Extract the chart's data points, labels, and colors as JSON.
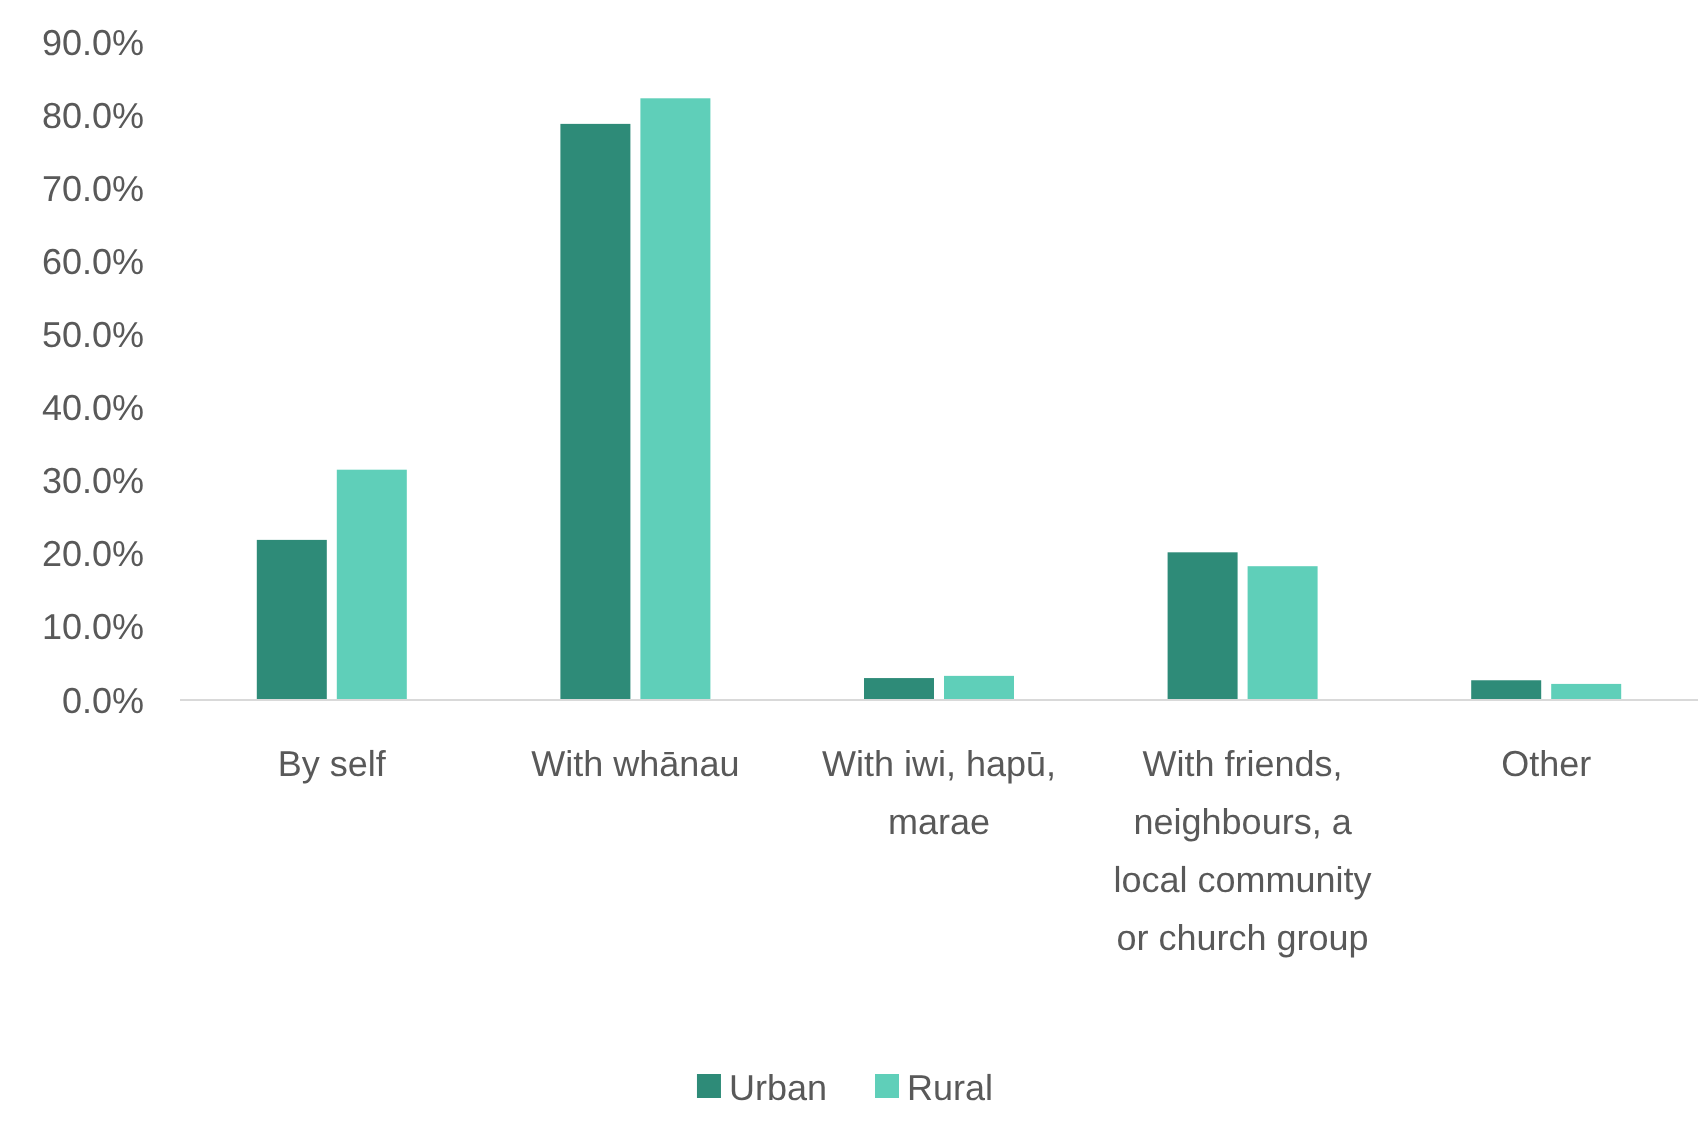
{
  "chart_data": {
    "type": "bar",
    "categories": [
      "By self",
      "With whānau",
      "With iwi, hapū, marae",
      "With friends, neighbours, a local community or church group",
      "Other"
    ],
    "series": [
      {
        "name": "Urban",
        "color": "#2e8b78",
        "values": [
          21.9,
          78.8,
          3.0,
          20.2,
          2.7
        ]
      },
      {
        "name": "Rural",
        "color": "#5fcfb9",
        "values": [
          31.5,
          82.3,
          3.3,
          18.3,
          2.2
        ]
      }
    ],
    "ylim": [
      0,
      90
    ],
    "yticks": [
      {
        "value": 0,
        "label": "0.0%"
      },
      {
        "value": 10,
        "label": "10.0%"
      },
      {
        "value": 20,
        "label": "20.0%"
      },
      {
        "value": 30,
        "label": "30.0%"
      },
      {
        "value": 40,
        "label": "40.0%"
      },
      {
        "value": 50,
        "label": "50.0%"
      },
      {
        "value": 60,
        "label": "60.0%"
      },
      {
        "value": 70,
        "label": "70.0%"
      },
      {
        "value": 80,
        "label": "80.0%"
      },
      {
        "value": 90,
        "label": "90.0%"
      }
    ],
    "grid": false,
    "legend": "bottom"
  }
}
